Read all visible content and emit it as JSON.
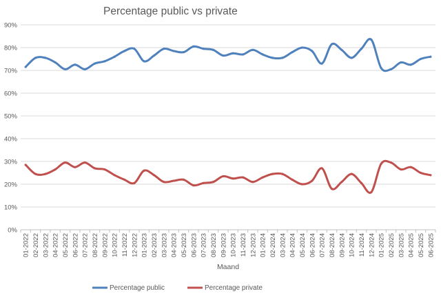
{
  "chart_data": {
    "type": "line",
    "title": "Percentage public vs private",
    "xlabel": "Maand",
    "ylabel": "",
    "ylim": [
      0,
      90
    ],
    "y_ticks": [
      "0%",
      "10%",
      "20%",
      "30%",
      "40%",
      "50%",
      "60%",
      "70%",
      "80%",
      "90%"
    ],
    "y_tick_values": [
      0,
      10,
      20,
      30,
      40,
      50,
      60,
      70,
      80,
      90
    ],
    "grid": true,
    "legend_position": "bottom",
    "categories": [
      "01-2022",
      "02-2022",
      "03-2022",
      "04-2022",
      "05-2022",
      "06-2022",
      "07-2022",
      "08-2022",
      "09-2022",
      "10-2022",
      "11-2022",
      "12-2022",
      "01-2023",
      "02-2023",
      "03-2023",
      "04-2023",
      "05-2023",
      "06-2023",
      "07-2023",
      "08-2023",
      "09-2023",
      "10-2023",
      "11-2023",
      "12-2023",
      "01-2024",
      "02-2024",
      "03-2024",
      "04-2024",
      "05-2024",
      "06-2024",
      "07-2024",
      "08-2024",
      "09-2024",
      "10-2024",
      "11-2024",
      "12-2024",
      "01-2025",
      "02-2025",
      "03-2025",
      "04-2025",
      "05-2025",
      "06-2025"
    ],
    "series": [
      {
        "name": "Percentage public",
        "color": "#4f81bd",
        "values": [
          71.5,
          75.5,
          75.5,
          73.5,
          70.5,
          72.5,
          70.5,
          73,
          74,
          76,
          78.5,
          79.5,
          74,
          76.5,
          79.5,
          78.5,
          78,
          80.5,
          79.5,
          79,
          76.5,
          77.5,
          77,
          79,
          77,
          75.5,
          75.5,
          78,
          80,
          78.5,
          73,
          81.5,
          79,
          75.5,
          79.5,
          83.5,
          71,
          70.5,
          73.5,
          72.5,
          75,
          76
        ]
      },
      {
        "name": "Percentage private",
        "color": "#c0504d",
        "values": [
          28.5,
          24.5,
          24.5,
          26.5,
          29.5,
          27.5,
          29.5,
          27,
          26.5,
          24,
          22,
          20.5,
          26,
          24,
          21,
          21.5,
          22,
          19.5,
          20.5,
          21,
          23.5,
          22.5,
          23,
          21,
          23,
          24.5,
          24.5,
          22,
          20,
          21.5,
          27,
          18,
          21,
          24.5,
          20.5,
          16.5,
          29,
          29.5,
          26.5,
          27.5,
          25,
          24
        ]
      }
    ]
  }
}
